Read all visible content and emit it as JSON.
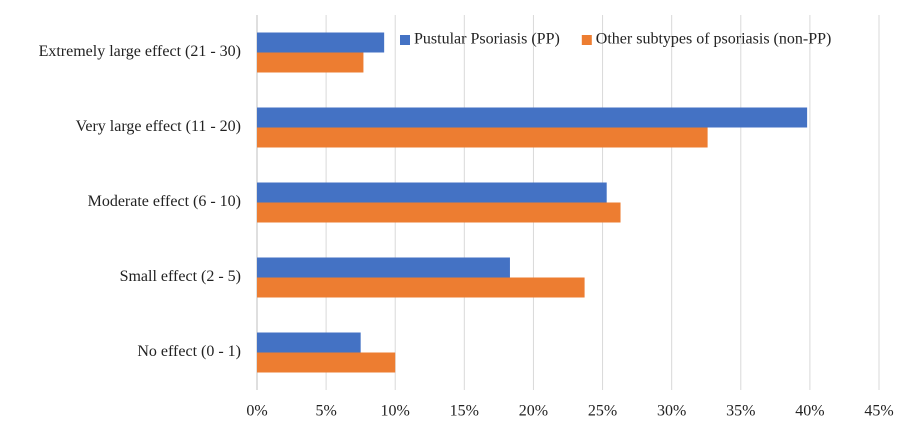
{
  "chart_data": {
    "type": "hbar",
    "categories": [
      "Extremely large effect (21 - 30)",
      "Very large effect (11 - 20)",
      "Moderate effect (6 - 10)",
      "Small effect (2 - 5)",
      "No effect (0 - 1)"
    ],
    "series": [
      {
        "name": "Pustular Psoriasis (PP)",
        "color": "#4472c4",
        "values": [
          9.2,
          39.8,
          25.3,
          18.3,
          7.5
        ]
      },
      {
        "name": "Other subtypes of psoriasis (non-PP)",
        "color": "#ed7d31",
        "values": [
          7.7,
          32.6,
          26.3,
          23.7,
          10.0
        ]
      }
    ],
    "xlim": [
      0,
      45
    ],
    "xticks": [
      {
        "value": 0,
        "label": "0%"
      },
      {
        "value": 5,
        "label": "5%"
      },
      {
        "value": 10,
        "label": "10%"
      },
      {
        "value": 15,
        "label": "15%"
      },
      {
        "value": 20,
        "label": "20%"
      },
      {
        "value": 25,
        "label": "25%"
      },
      {
        "value": 30,
        "label": "30%"
      },
      {
        "value": 35,
        "label": "35%"
      },
      {
        "value": 40,
        "label": "40%"
      },
      {
        "value": 45,
        "label": "45%"
      }
    ],
    "grid": true,
    "legend": "top-right"
  }
}
